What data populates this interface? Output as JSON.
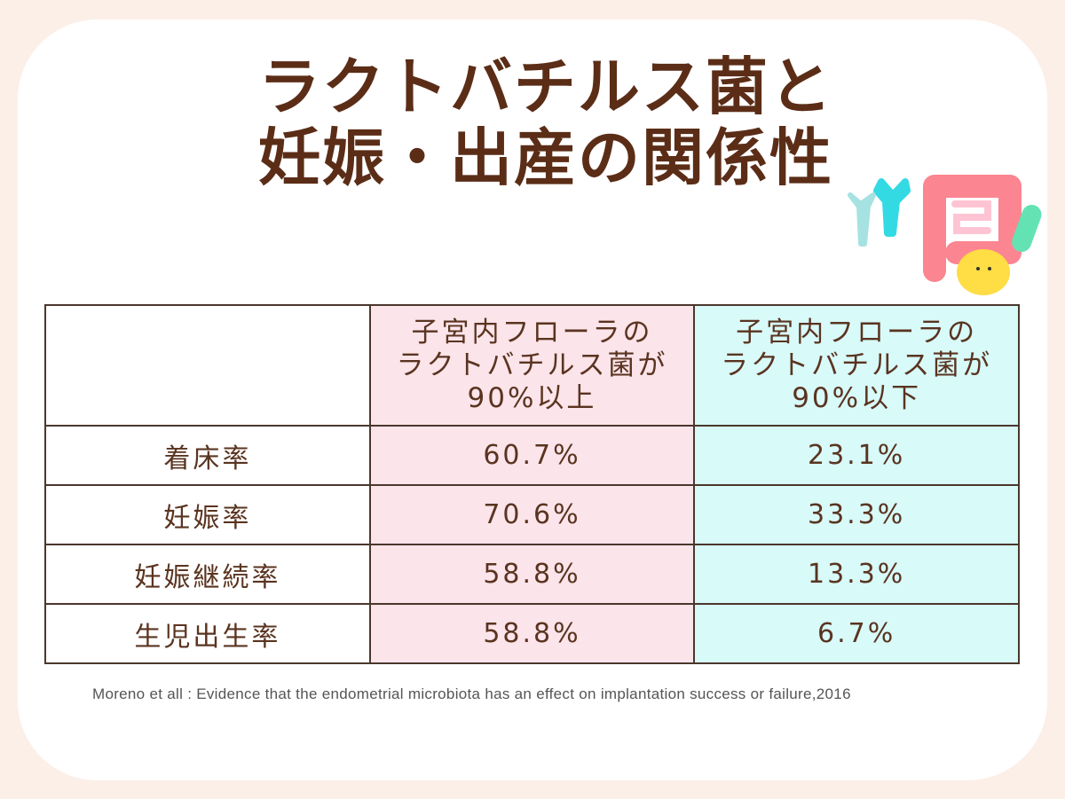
{
  "title": {
    "line1": "ラクトバチルス菌と",
    "line2": "妊娠・出産の関係性"
  },
  "table": {
    "headers": [
      "",
      "子宮内フローラの\nラクトバチルス菌が\n90%以上",
      "子宮内フローラの\nラクトバチルス菌が\n90%以下"
    ],
    "rows": [
      {
        "label": "着床率",
        "high": "60.7%",
        "low": "23.1%"
      },
      {
        "label": "妊娠率",
        "high": "70.6%",
        "low": "33.3%"
      },
      {
        "label": "妊娠継続率",
        "high": "58.8%",
        "low": "13.3%"
      },
      {
        "label": "生児出生率",
        "high": "58.8%",
        "low": "6.7%"
      }
    ]
  },
  "citation": "Moreno et all : Evidence that the endometrial microbiota has an effect on implantation success or failure,2016",
  "colors": {
    "title": "#5b2d17",
    "high_col": "#fbe4ea",
    "low_col": "#d8faf9",
    "background": "#fcefe8"
  },
  "illustration": "intestine-with-bacteria"
}
